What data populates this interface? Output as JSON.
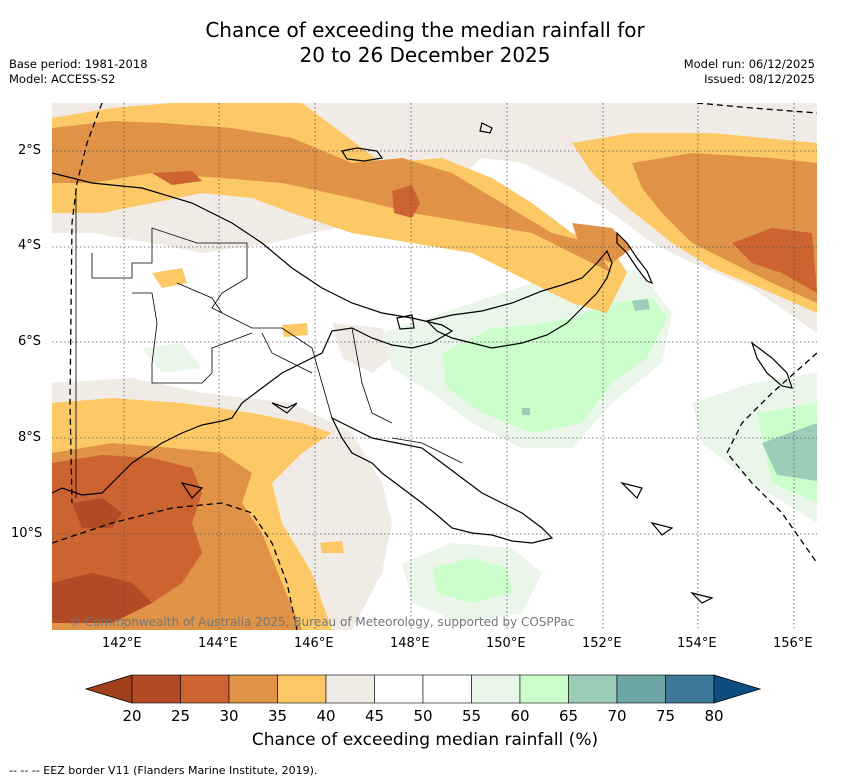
{
  "title_line1": "Chance of exceeding the median rainfall for",
  "title_line2": "20 to 26 December 2025",
  "base_period": "Base period: 1981-2018",
  "model": "Model: ACCESS-S2",
  "model_run": "Model run: 06/12/2025",
  "issued": "Issued: 08/12/2025",
  "copyright": "© Commonwealth of Australia 2025, Bureau of Meteorology, supported by COSPPac",
  "lat_ticks": [
    "2°S",
    "4°S",
    "6°S",
    "8°S",
    "10°S"
  ],
  "lon_ticks": [
    "142°E",
    "144°E",
    "146°E",
    "148°E",
    "150°E",
    "152°E",
    "154°E",
    "156°E"
  ],
  "colorbar": {
    "title": "Chance of exceeding median rainfall (%)",
    "labels": [
      "20",
      "25",
      "30",
      "35",
      "40",
      "45",
      "50",
      "55",
      "60",
      "65",
      "70",
      "75",
      "80"
    ],
    "colors": [
      "#a1401d",
      "#b24a25",
      "#cc6331",
      "#e09246",
      "#fdc966",
      "#f0ebe5",
      "#ffffff",
      "#ffffff",
      "#eaf6ea",
      "#ccfecc",
      "#9ccdb9",
      "#6ea6a6",
      "#3d7898",
      "#0c4c80"
    ]
  },
  "legend_eez": "--  --  -- EEZ border V11 (Flanders Marine Institute, 2019)."
}
